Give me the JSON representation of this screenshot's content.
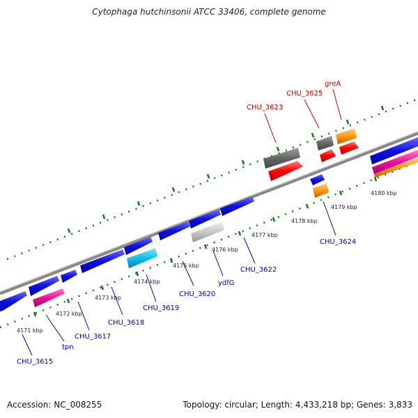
{
  "title": "Cytophaga hutchinsonii ATCC 33406, complete genome",
  "footer": {
    "accession": "Accession: NC_008255",
    "summary": "Topology: circular; Length: 4,433,218 bp; Genes: 3,833"
  },
  "kbp_labels": [
    "4171 kbp",
    "4172 kbp",
    "4173 kbp",
    "4174 kbp",
    "4175 kbp",
    "4176 kbp",
    "4177 kbp",
    "4178 kbp",
    "4179 kbp",
    "4180 kbp"
  ],
  "gene_labels_bottom": [
    "CHU_3615",
    "tpn",
    "CHU_3617",
    "CHU_3618",
    "CHU_3619",
    "CHU_3620",
    "ydfG",
    "CHU_3622",
    "CHU_3624"
  ],
  "gene_labels_top": [
    "CHU_3623",
    "CHU_3625",
    "greA"
  ],
  "colors": {
    "forward_gene": "#1010e8",
    "reverse_gene_red": "#ff0000",
    "grey_gene": "#666666",
    "light_grey_gene": "#c8c8c8",
    "cyan_gene": "#10c0f0",
    "magenta_gene": "#f0109a",
    "orange_gene": "#ff9a10",
    "backbone": "#888888",
    "tick": "#117711",
    "blue_label": "#0000c8",
    "red_label": "#d00000"
  }
}
